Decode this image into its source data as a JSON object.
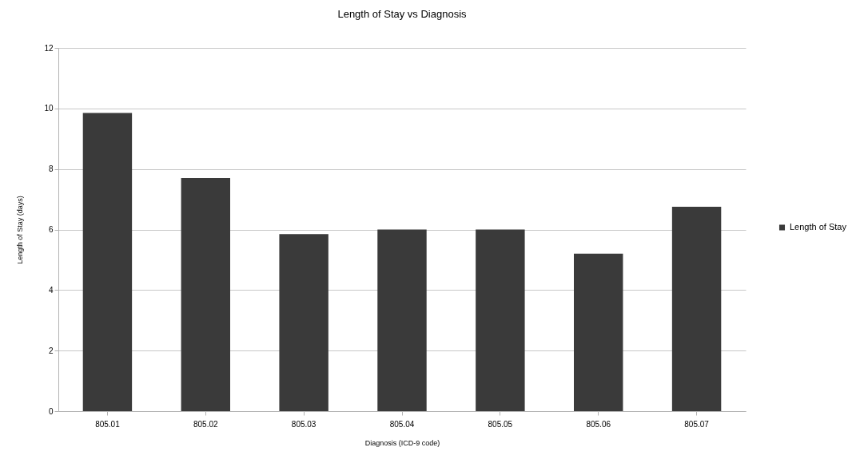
{
  "chart_data": {
    "type": "bar",
    "title": "Length of Stay vs Diagnosis",
    "xlabel": "Diagnosis (ICD-9 code)",
    "ylabel": "Length of Stay (days)",
    "categories": [
      "805.01",
      "805.02",
      "805.03",
      "805.04",
      "805.05",
      "805.06",
      "805.07"
    ],
    "series": [
      {
        "name": "Length of Stay",
        "color": "#3a3a3a",
        "values": [
          9.85,
          7.7,
          5.85,
          6.0,
          6.0,
          5.2,
          6.75
        ]
      }
    ],
    "ylim": [
      0,
      12
    ],
    "yticks": [
      0,
      2,
      4,
      6,
      8,
      10,
      12
    ],
    "grid": "y",
    "legend": "right"
  }
}
